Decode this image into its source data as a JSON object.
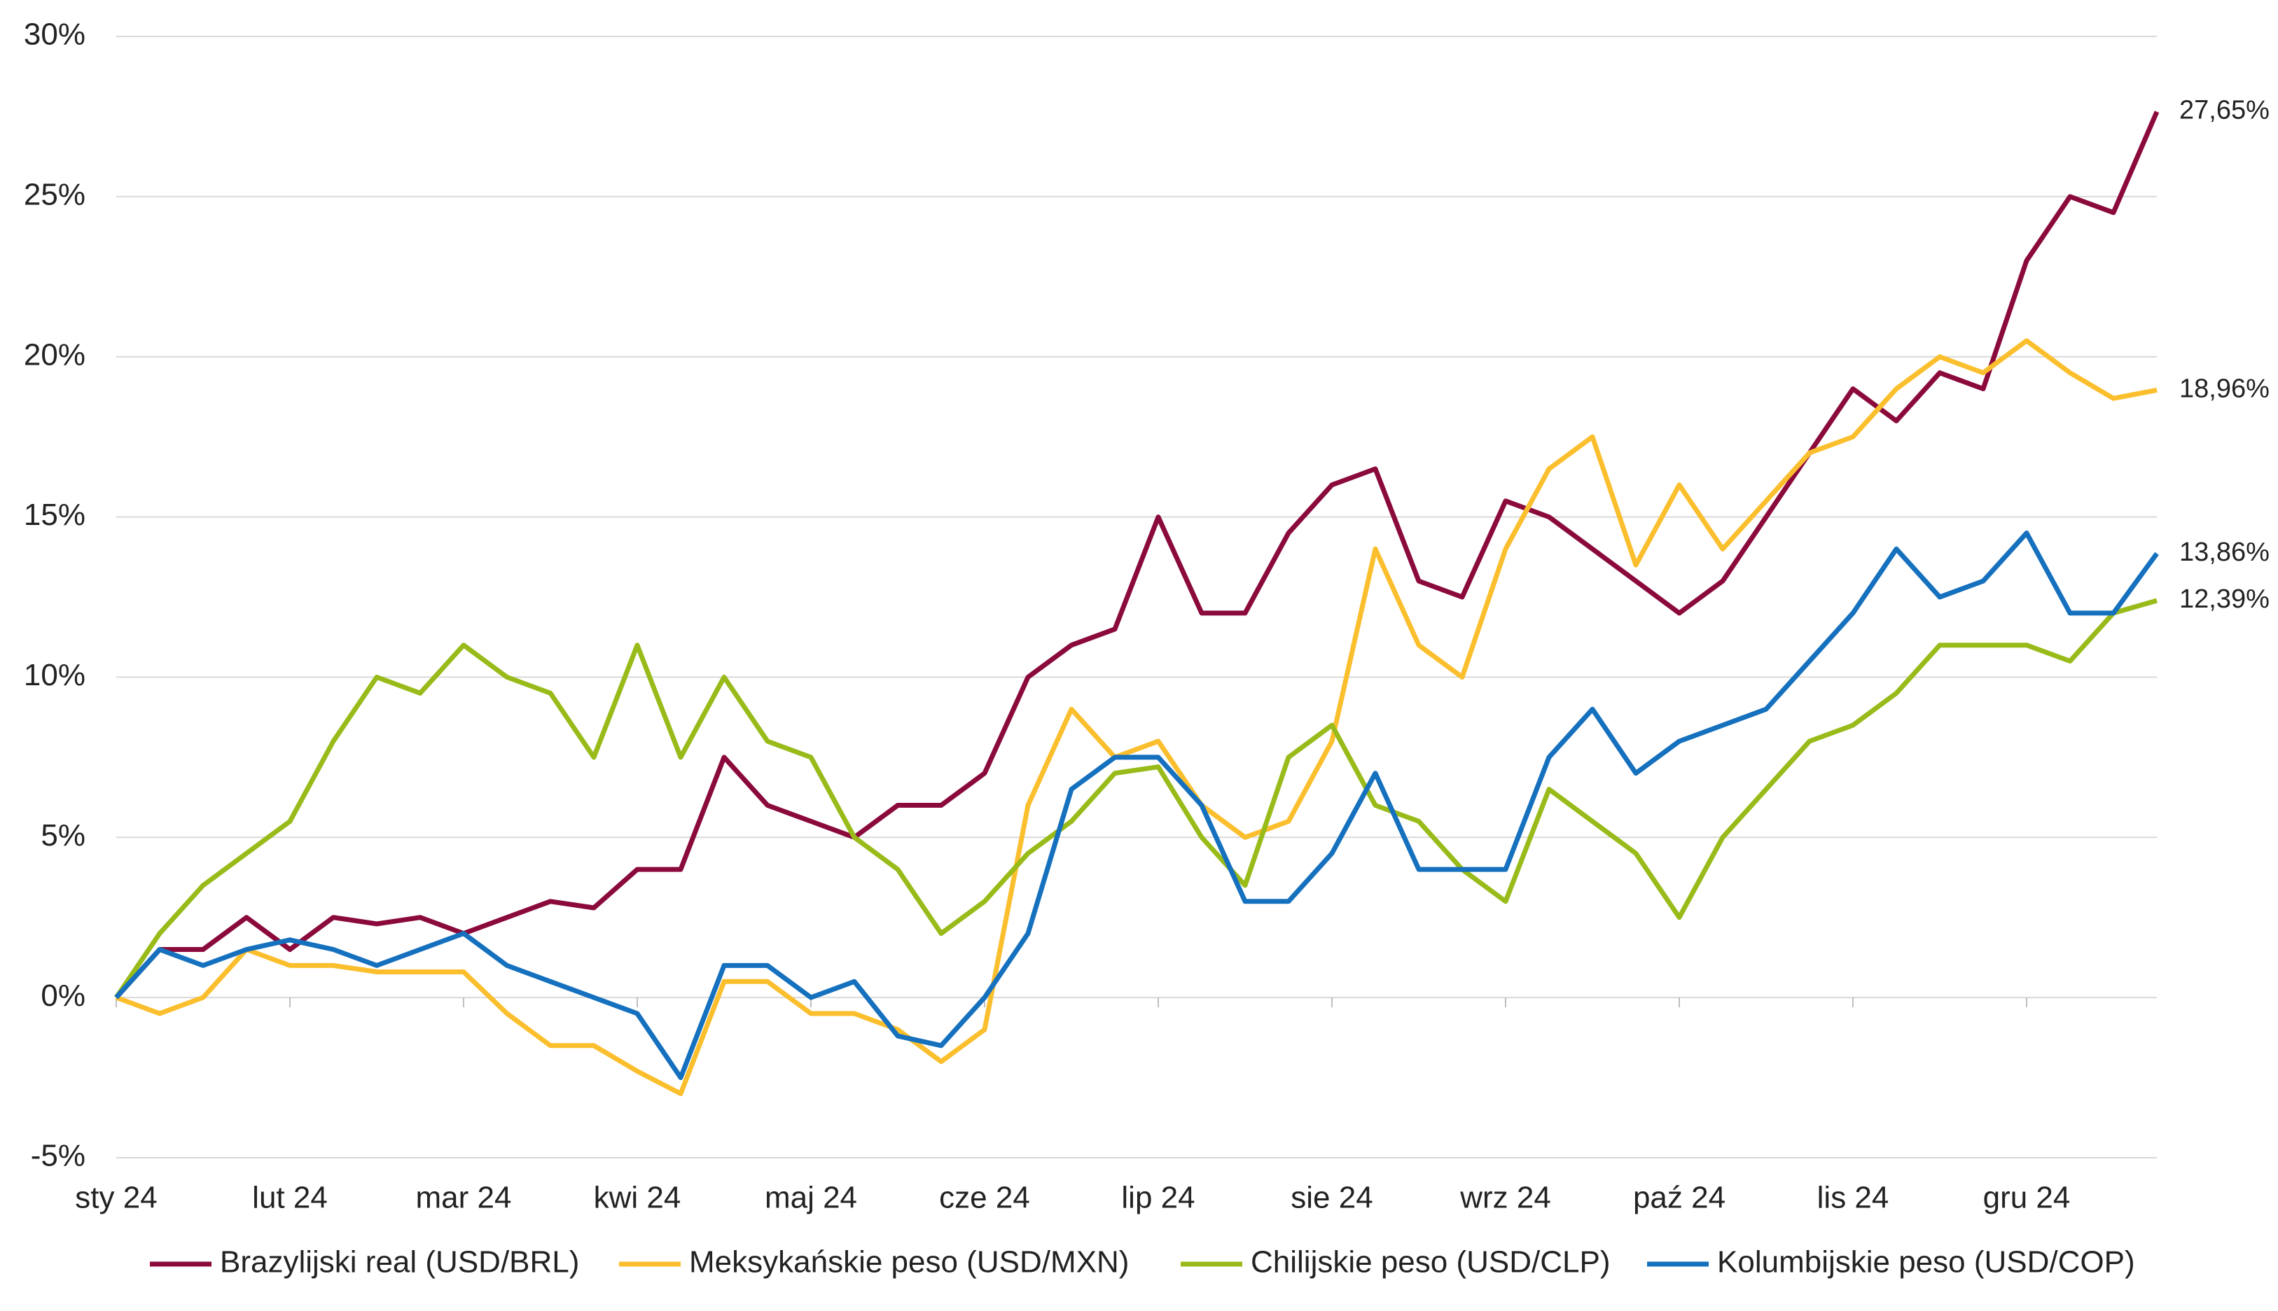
{
  "chart_data": {
    "type": "line",
    "categories": [
      "sty 24",
      null,
      null,
      null,
      "lut 24",
      null,
      null,
      null,
      "mar 24",
      null,
      null,
      null,
      "kwi 24",
      null,
      null,
      null,
      "maj 24",
      null,
      null,
      null,
      "cze 24",
      null,
      null,
      null,
      "lip 24",
      null,
      null,
      null,
      "sie 24",
      null,
      null,
      null,
      "wrz 24",
      null,
      null,
      null,
      "paź 24",
      null,
      null,
      null,
      "lis 24",
      null,
      null,
      null,
      "gru 24",
      null,
      null,
      null
    ],
    "series": [
      {
        "name": "Brazylijski real (USD/BRL)",
        "color": "#8b0a3c",
        "values": [
          0,
          1.5,
          1.5,
          2.5,
          1.5,
          2.5,
          2.3,
          2.5,
          2.0,
          2.5,
          3,
          2.8,
          4,
          4,
          7.5,
          6,
          5.5,
          5,
          6,
          6,
          7,
          10,
          11,
          11.5,
          15,
          12,
          12,
          14.5,
          16,
          16.5,
          13,
          12.5,
          15.5,
          15,
          14,
          13,
          12,
          13,
          15,
          17,
          19,
          18,
          19.5,
          19,
          23,
          25,
          24.5,
          27.65
        ],
        "value_labels": [
          null,
          null,
          null,
          null,
          null,
          null,
          null,
          null,
          null,
          null,
          null,
          null,
          null,
          null,
          null,
          null,
          null,
          null,
          null,
          null,
          null,
          null,
          null,
          null,
          null,
          null,
          null,
          null,
          null,
          null,
          null,
          null,
          null,
          null,
          null,
          null,
          null,
          null,
          null,
          null,
          null,
          null,
          null,
          null,
          null,
          null,
          null,
          "27,65%"
        ]
      },
      {
        "name": "Meksykańskie peso (USD/MXN)",
        "color": "#fbbf2e",
        "values": [
          0,
          -0.5,
          0,
          1.5,
          1,
          1,
          0.8,
          0.8,
          0.8,
          -0.5,
          -1.5,
          -1.5,
          -2.3,
          -3,
          0.5,
          0.5,
          -0.5,
          -0.5,
          -1,
          -2,
          -1,
          6,
          9,
          7.5,
          8,
          6,
          5,
          5.5,
          8,
          14,
          11,
          10,
          14,
          16.5,
          17.5,
          13.5,
          16,
          14,
          15.5,
          17,
          17.5,
          19,
          20,
          19.5,
          20.5,
          19.5,
          18.7,
          18.96
        ],
        "value_labels": [
          null,
          null,
          null,
          null,
          null,
          null,
          null,
          null,
          null,
          null,
          null,
          null,
          null,
          null,
          null,
          null,
          null,
          null,
          null,
          null,
          null,
          null,
          null,
          null,
          null,
          null,
          null,
          null,
          null,
          null,
          null,
          null,
          null,
          null,
          null,
          null,
          null,
          null,
          null,
          null,
          null,
          null,
          null,
          null,
          null,
          null,
          null,
          "18,96%"
        ]
      },
      {
        "name": "Chilijskie peso (USD/CLP)",
        "color": "#99bb1a",
        "values": [
          0,
          2,
          3.5,
          4.5,
          5.5,
          8,
          10,
          9.5,
          11,
          10,
          9.5,
          7.5,
          11,
          7.5,
          10,
          8,
          7.5,
          5,
          4,
          2,
          3,
          4.5,
          5.5,
          7,
          7.2,
          5,
          3.5,
          7.5,
          8.5,
          6,
          5.5,
          4,
          3,
          6.5,
          5.5,
          4.5,
          2.5,
          5,
          6.5,
          8,
          8.5,
          9.5,
          11,
          11,
          11,
          10.5,
          12,
          12.39
        ],
        "value_labels": [
          null,
          null,
          null,
          null,
          null,
          null,
          null,
          null,
          null,
          null,
          null,
          null,
          null,
          null,
          null,
          null,
          null,
          null,
          null,
          null,
          null,
          null,
          null,
          null,
          null,
          null,
          null,
          null,
          null,
          null,
          null,
          null,
          null,
          null,
          null,
          null,
          null,
          null,
          null,
          null,
          null,
          null,
          null,
          null,
          null,
          null,
          null,
          "12,39%"
        ]
      },
      {
        "name": "Kolumbijskie peso (USD/COP)",
        "color": "#1570be",
        "values": [
          0,
          1.5,
          1,
          1.5,
          1.8,
          1.5,
          1,
          1.5,
          2,
          1,
          0.5,
          0,
          -0.5,
          -2.5,
          1,
          1,
          0,
          0.5,
          -1.2,
          -1.5,
          0,
          2,
          6.5,
          7.5,
          7.5,
          6,
          3,
          3,
          4.5,
          7,
          4,
          4,
          4,
          7.5,
          9,
          7,
          8,
          8.5,
          9,
          10.5,
          12,
          14,
          12.5,
          13,
          14.5,
          12,
          12,
          13.86
        ],
        "value_labels": [
          null,
          null,
          null,
          null,
          null,
          null,
          null,
          null,
          null,
          null,
          null,
          null,
          null,
          null,
          null,
          null,
          null,
          null,
          null,
          null,
          null,
          null,
          null,
          null,
          null,
          null,
          null,
          null,
          null,
          null,
          null,
          null,
          null,
          null,
          null,
          null,
          null,
          null,
          null,
          null,
          null,
          null,
          null,
          null,
          null,
          null,
          null,
          "13,86%"
        ]
      }
    ],
    "ylim": [
      -5,
      30
    ],
    "yticks": [
      {
        "value": -5,
        "label": "-5%"
      },
      {
        "value": 0,
        "label": "0%"
      },
      {
        "value": 5,
        "label": "5%"
      },
      {
        "value": 10,
        "label": "10%"
      },
      {
        "value": 15,
        "label": "15%"
      },
      {
        "value": 20,
        "label": "20%"
      },
      {
        "value": 25,
        "label": "25%"
      },
      {
        "value": 30,
        "label": "30%"
      }
    ],
    "grid": true,
    "legend": "bottom"
  }
}
